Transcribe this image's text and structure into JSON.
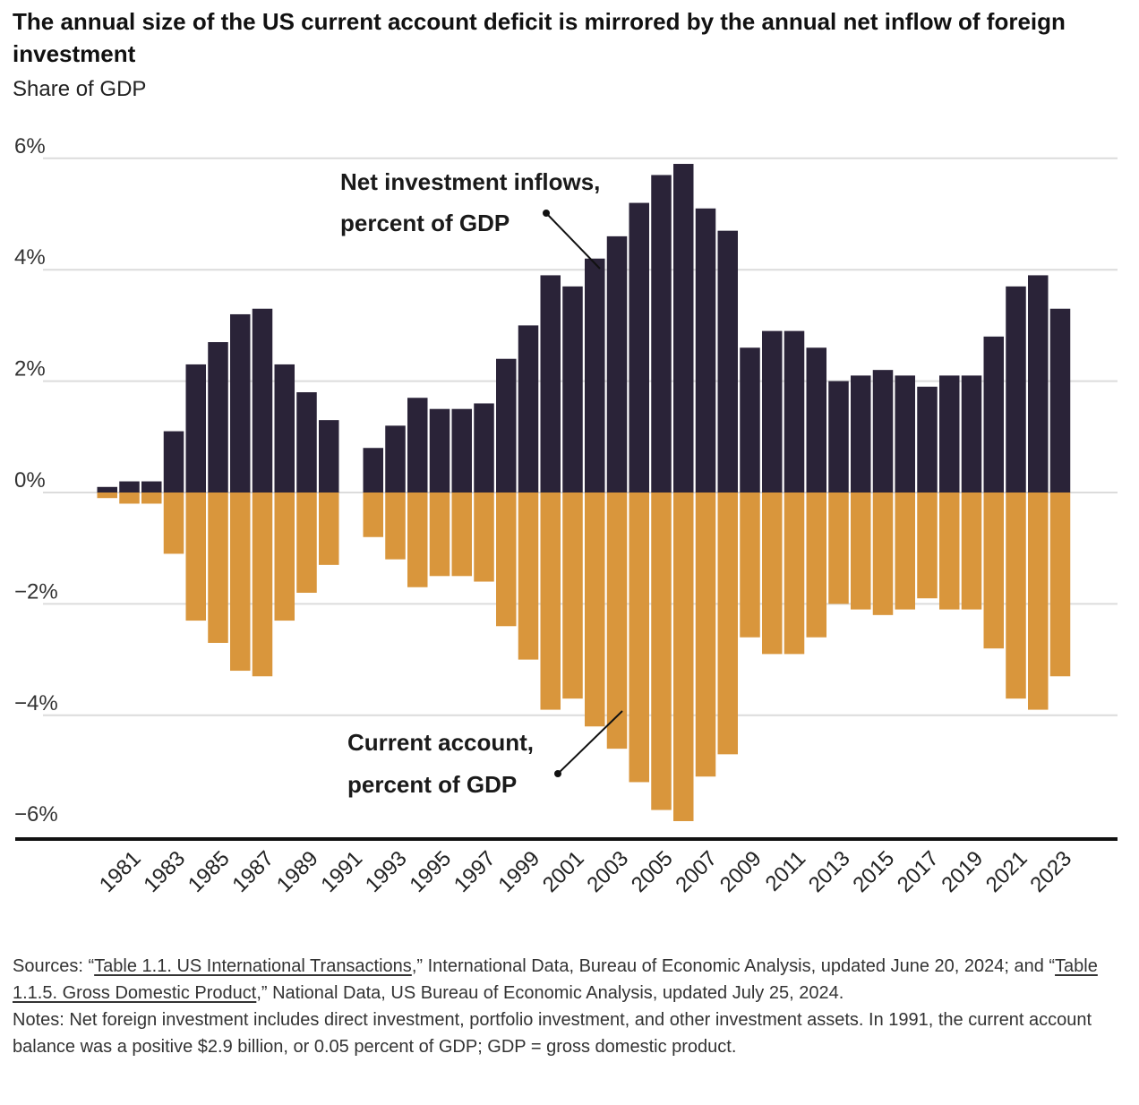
{
  "title": "The annual size of the US current account deficit is mirrored by the annual net inflow of foreign investment",
  "subtitle": "Share of GDP",
  "colors": {
    "inflows": "#2a2338",
    "current_account": "#d9963c",
    "grid": "#dcdcdc",
    "axis": "#111111"
  },
  "chart_data": {
    "type": "bar",
    "ylim": [
      -6,
      6
    ],
    "yticks": [
      6,
      4,
      2,
      0,
      -2,
      -4,
      -6
    ],
    "ytick_labels": [
      "6%",
      "4%",
      "2%",
      "0%",
      "−2%",
      "−4%",
      "−6%"
    ],
    "categories": [
      1980,
      1981,
      1982,
      1983,
      1984,
      1985,
      1986,
      1987,
      1988,
      1989,
      1990,
      1991,
      1992,
      1993,
      1994,
      1995,
      1996,
      1997,
      1998,
      1999,
      2000,
      2001,
      2002,
      2003,
      2004,
      2005,
      2006,
      2007,
      2008,
      2009,
      2010,
      2011,
      2012,
      2013,
      2014,
      2015,
      2016,
      2017,
      2018,
      2019,
      2020,
      2021,
      2022,
      2023
    ],
    "xtick_labels": [
      "1981",
      "1983",
      "1985",
      "1987",
      "1989",
      "1991",
      "1993",
      "1995",
      "1997",
      "1999",
      "2001",
      "2003",
      "2005",
      "2007",
      "2009",
      "2011",
      "2013",
      "2015",
      "2017",
      "2019",
      "2021",
      "2023"
    ],
    "series": [
      {
        "name": "Net investment inflows, percent of GDP",
        "values": [
          0.1,
          0.2,
          0.2,
          1.1,
          2.3,
          2.7,
          3.2,
          3.3,
          2.3,
          1.8,
          1.3,
          0.0,
          0.8,
          1.2,
          1.7,
          1.5,
          1.5,
          1.6,
          2.4,
          3.0,
          3.9,
          3.7,
          4.2,
          4.6,
          5.2,
          5.7,
          5.9,
          5.1,
          4.7,
          2.6,
          2.9,
          2.9,
          2.6,
          2.0,
          2.1,
          2.2,
          2.1,
          1.9,
          2.1,
          2.1,
          2.8,
          3.7,
          3.9,
          3.3
        ]
      },
      {
        "name": "Current account, percent of GDP",
        "values": [
          -0.1,
          -0.2,
          -0.2,
          -1.1,
          -2.3,
          -2.7,
          -3.2,
          -3.3,
          -2.3,
          -1.8,
          -1.3,
          0.0,
          -0.8,
          -1.2,
          -1.7,
          -1.5,
          -1.5,
          -1.6,
          -2.4,
          -3.0,
          -3.9,
          -3.7,
          -4.2,
          -4.6,
          -5.2,
          -5.7,
          -5.9,
          -5.1,
          -4.7,
          -2.6,
          -2.9,
          -2.9,
          -2.6,
          -2.0,
          -2.1,
          -2.2,
          -2.1,
          -1.9,
          -2.1,
          -2.1,
          -2.8,
          -3.7,
          -3.9,
          -3.3
        ]
      }
    ],
    "annotations": [
      {
        "lines": [
          "Net investment inflows,",
          "percent of GDP"
        ]
      },
      {
        "lines": [
          "Current account,",
          "percent of GDP"
        ]
      }
    ]
  },
  "notes": {
    "sources_prefix": "Sources: “",
    "sources_link1": "Table 1.1. US International Transactions",
    "sources_mid": ",” International Data, Bureau of Economic Analysis, updated June 20, 2024; and “",
    "sources_link2": "Table 1.1.5. Gross Domestic Product",
    "sources_suffix": ",” National Data, US Bureau of Economic Analysis, updated July 25, 2024.",
    "notes_text": "Notes: Net foreign investment includes direct investment, portfolio investment, and other investment assets. In 1991, the current account balance was a positive $2.9 billion, or 0.05 percent of GDP; GDP = gross domestic product."
  }
}
